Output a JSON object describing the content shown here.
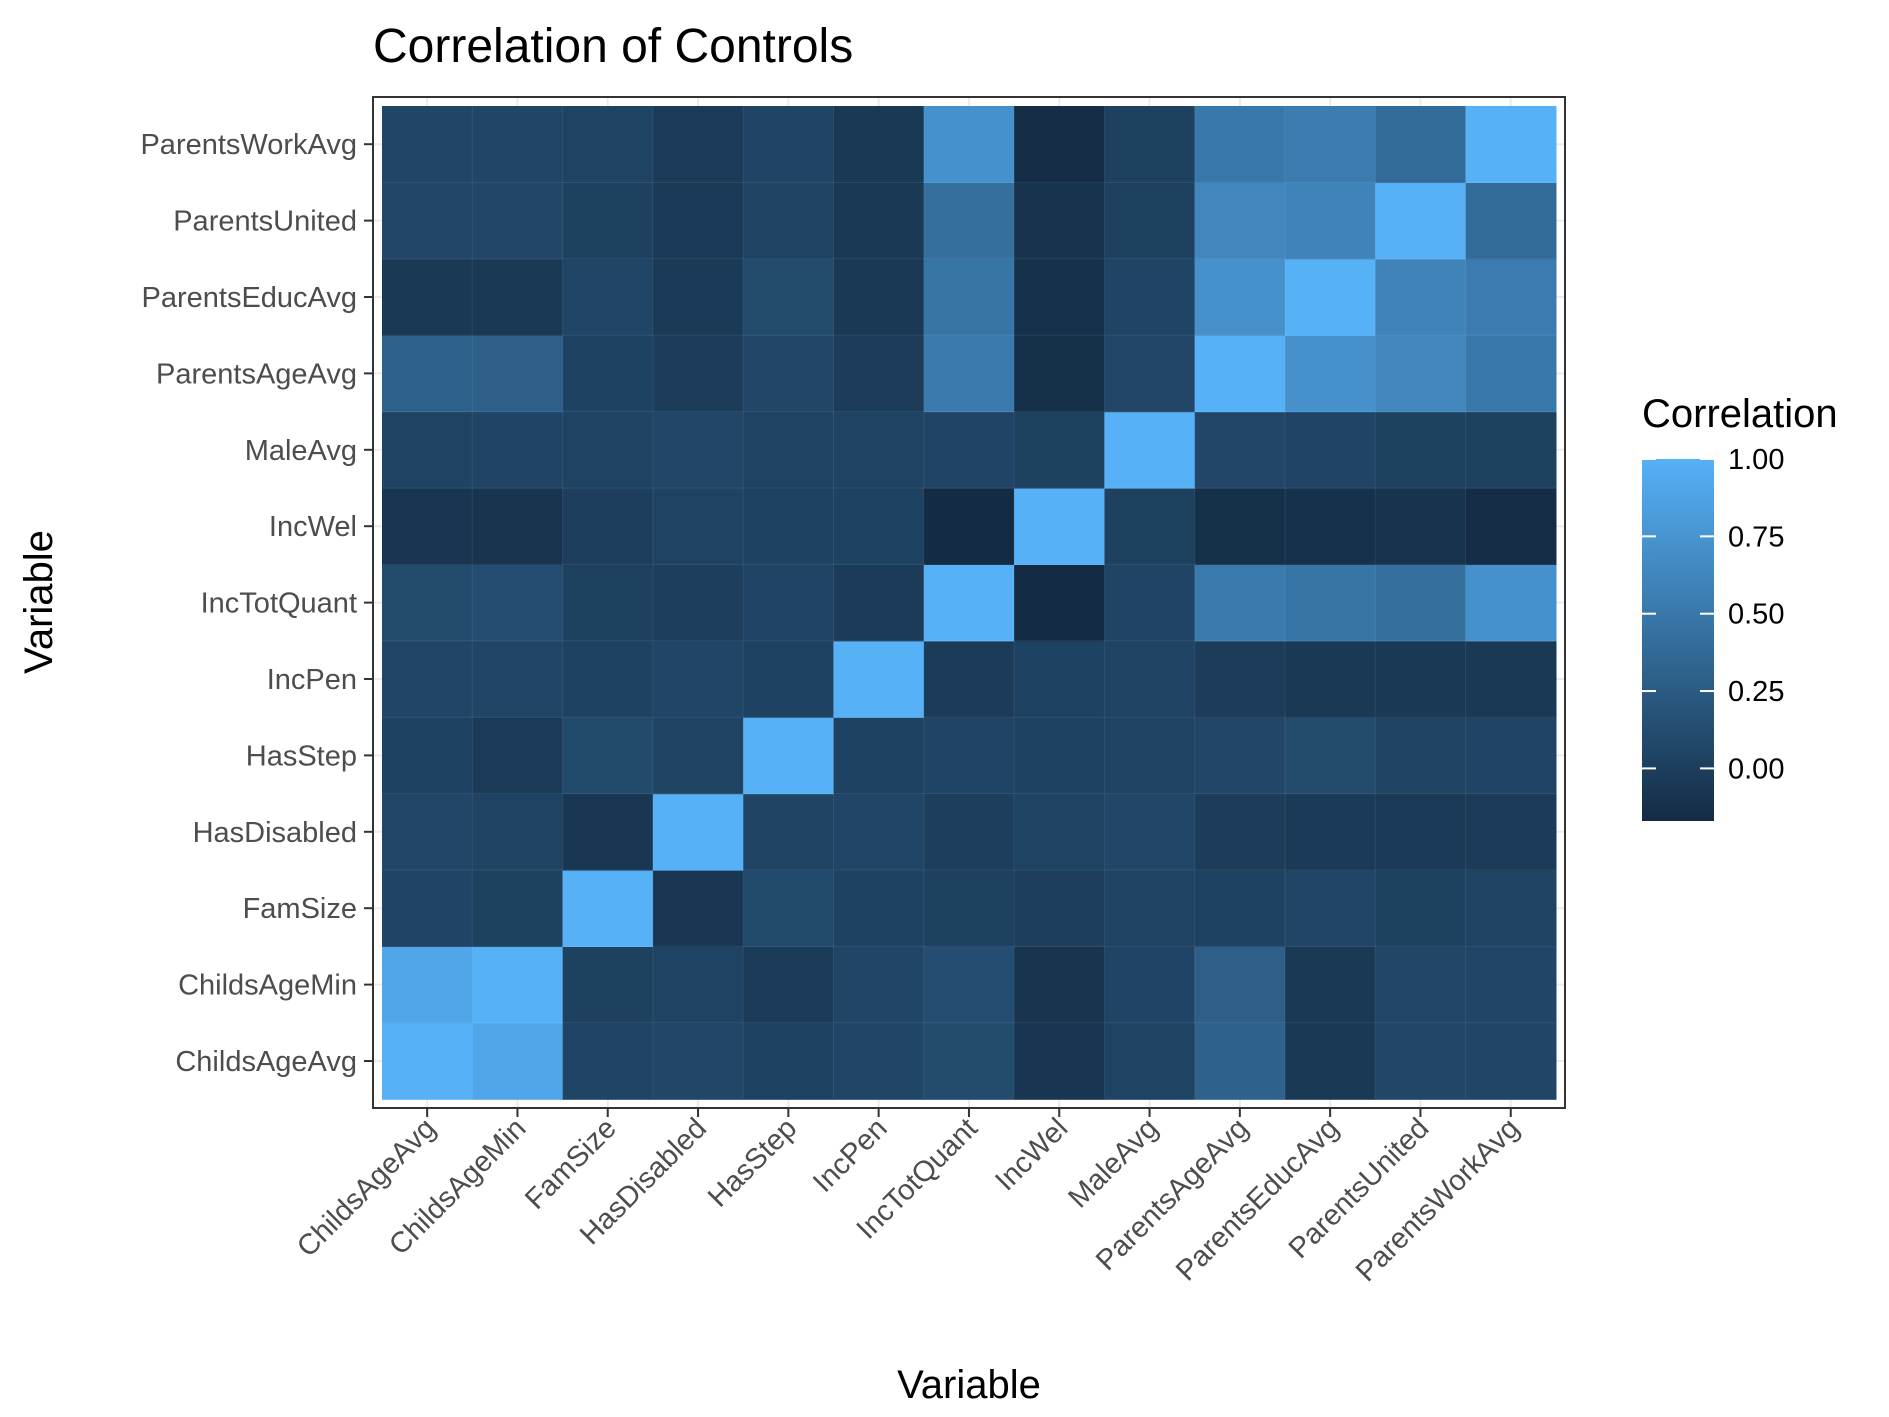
{
  "chart_data": {
    "type": "heatmap",
    "title": "Correlation of Controls",
    "xlabel": "Variable",
    "ylabel": "Variable",
    "variables": [
      "ChildsAgeAvg",
      "ChildsAgeMin",
      "FamSize",
      "HasDisabled",
      "HasStep",
      "IncPen",
      "IncTotQuant",
      "IncWel",
      "MaleAvg",
      "ParentsAgeAvg",
      "ParentsEducAvg",
      "ParentsUnited",
      "ParentsWorkAvg"
    ],
    "matrix": [
      [
        1.0,
        0.9,
        0.05,
        0.07,
        0.03,
        0.06,
        0.11,
        -0.08,
        0.04,
        0.3,
        -0.05,
        0.07,
        0.06
      ],
      [
        0.9,
        1.0,
        0.02,
        0.04,
        -0.03,
        0.06,
        0.13,
        -0.09,
        0.05,
        0.28,
        -0.05,
        0.07,
        0.06
      ],
      [
        0.05,
        0.02,
        1.0,
        -0.07,
        0.1,
        0.03,
        0.02,
        0.0,
        0.04,
        0.03,
        0.06,
        0.02,
        0.04
      ],
      [
        0.07,
        0.04,
        -0.07,
        1.0,
        0.04,
        0.06,
        0.0,
        0.04,
        0.07,
        -0.02,
        -0.04,
        -0.04,
        -0.03
      ],
      [
        0.03,
        -0.03,
        0.1,
        0.04,
        1.0,
        0.03,
        0.05,
        0.03,
        0.04,
        0.07,
        0.11,
        0.04,
        0.05
      ],
      [
        0.06,
        0.06,
        0.03,
        0.06,
        0.03,
        1.0,
        -0.03,
        0.03,
        0.04,
        -0.02,
        -0.05,
        -0.05,
        -0.05
      ],
      [
        0.11,
        0.13,
        0.02,
        0.0,
        0.05,
        -0.03,
        1.0,
        -0.17,
        0.05,
        0.52,
        0.48,
        0.42,
        0.72
      ],
      [
        -0.08,
        -0.09,
        0.0,
        0.04,
        0.03,
        0.03,
        -0.17,
        1.0,
        0.02,
        -0.13,
        -0.12,
        -0.1,
        -0.16
      ],
      [
        0.04,
        0.05,
        0.04,
        0.07,
        0.04,
        0.04,
        0.05,
        0.02,
        1.0,
        0.07,
        0.05,
        0.02,
        0.02
      ],
      [
        0.3,
        0.28,
        0.03,
        -0.02,
        0.07,
        -0.02,
        0.52,
        -0.13,
        0.07,
        1.0,
        0.72,
        0.63,
        0.5
      ],
      [
        -0.05,
        -0.05,
        0.06,
        -0.04,
        0.11,
        -0.05,
        0.48,
        -0.12,
        0.05,
        0.72,
        1.0,
        0.6,
        0.53
      ],
      [
        0.07,
        0.07,
        0.02,
        -0.04,
        0.04,
        -0.05,
        0.42,
        -0.1,
        0.02,
        0.63,
        0.6,
        1.0,
        0.38
      ],
      [
        0.06,
        0.06,
        0.04,
        -0.03,
        0.05,
        -0.05,
        0.72,
        -0.16,
        0.02,
        0.5,
        0.53,
        0.38,
        1.0
      ]
    ],
    "legend": {
      "title": "Correlation",
      "ticks": [
        1.0,
        0.75,
        0.5,
        0.25,
        0.0
      ],
      "tick_labels": [
        "1.00",
        "0.75",
        "0.50",
        "0.25",
        "0.00"
      ],
      "range": [
        -0.17,
        1.0
      ],
      "placement": "right"
    },
    "colors": {
      "low": "#132B43",
      "high": "#56B1F7"
    },
    "grid": true
  }
}
